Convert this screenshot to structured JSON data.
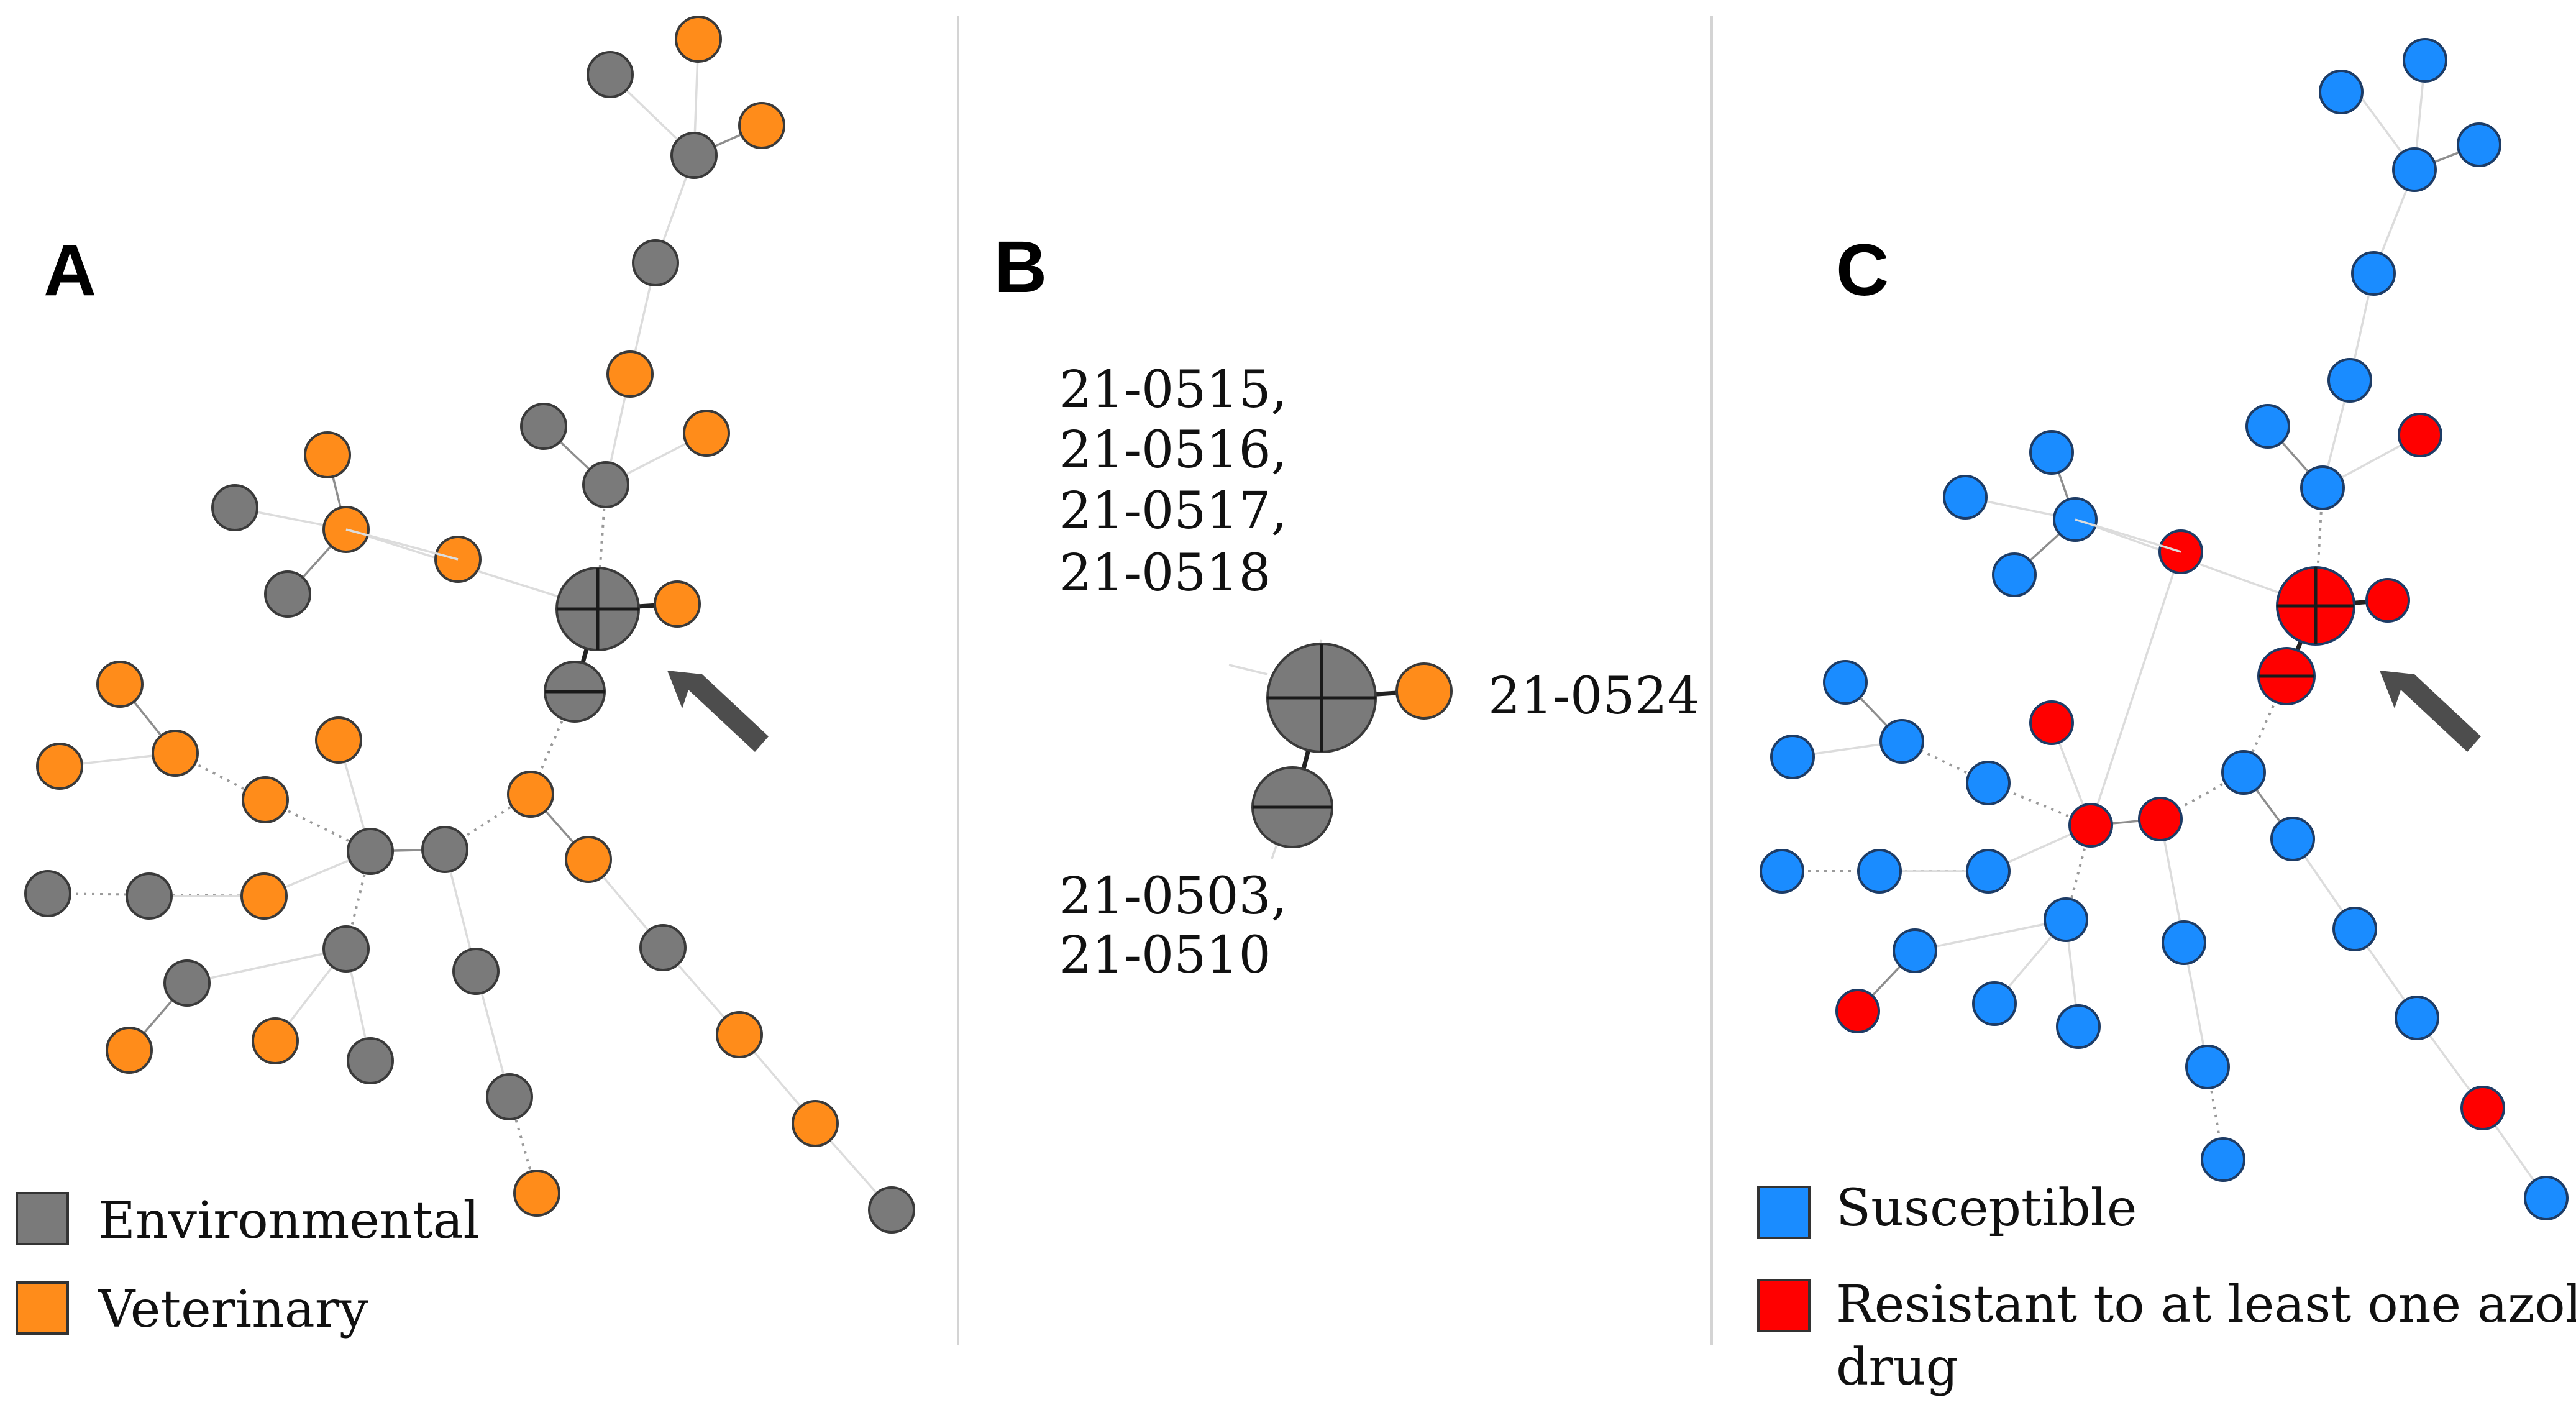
{
  "panels": {
    "a": {
      "letter": "A"
    },
    "b": {
      "letter": "B"
    },
    "c": {
      "letter": "C"
    }
  },
  "legend_a": {
    "environmental": {
      "label": "Environmental",
      "color": "#7a7a7a"
    },
    "veterinary": {
      "label": "Veterinary",
      "color": "#ff8c1a"
    }
  },
  "legend_c": {
    "susceptible": {
      "label": "Susceptible",
      "color": "#1a8cff"
    },
    "resistant": {
      "label_line1": "Resistant to at least one azole",
      "label_line2": "drug",
      "color": "#ff0000"
    }
  },
  "panel_b_labels": {
    "top_line1": "21-0515,",
    "top_line2": "21-0516,",
    "top_line3": "21-0517,",
    "top_line4": "21-0518",
    "right": "21-0524",
    "bottom_line1": "21-0503,",
    "bottom_line2": "21-0510"
  },
  "colors": {
    "environmental": "#7a7a7a",
    "veterinary": "#ff8c1a",
    "susceptible": "#1a8cff",
    "resistant": "#ff0000",
    "arrow": "#4d4d4d"
  }
}
